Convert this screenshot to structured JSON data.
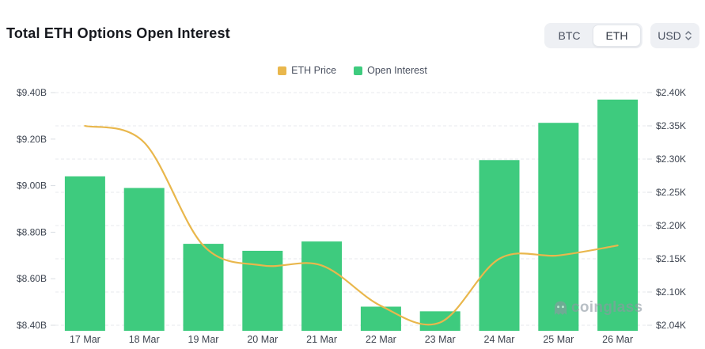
{
  "header": {
    "title": "Total ETH Options Open Interest",
    "coin_toggle": {
      "options": [
        "BTC",
        "ETH"
      ],
      "selected": "ETH"
    },
    "currency_selector": {
      "value": "USD"
    }
  },
  "legend": [
    {
      "label": "ETH Price",
      "color": "#e9b74c"
    },
    {
      "label": "Open Interest",
      "color": "#3ecb7e"
    }
  ],
  "watermark": {
    "text": "coinglass"
  },
  "chart_data": {
    "type": "bar+line combo",
    "title": "Total ETH Options Open Interest",
    "categories": [
      "17 Mar",
      "18 Mar",
      "19 Mar",
      "20 Mar",
      "21 Mar",
      "22 Mar",
      "23 Mar",
      "24 Mar",
      "25 Mar",
      "26 Mar"
    ],
    "series": [
      {
        "name": "Open Interest",
        "type": "bar",
        "axis": "left",
        "unit": "billion USD",
        "color": "#3ecb7e",
        "values": [
          9.04,
          8.99,
          8.75,
          8.72,
          8.76,
          8.48,
          8.46,
          9.11,
          9.27,
          9.37
        ]
      },
      {
        "name": "ETH Price",
        "type": "line",
        "axis": "right",
        "unit": "thousand USD",
        "color": "#e9b74c",
        "values": [
          2.35,
          2.325,
          2.17,
          2.14,
          2.14,
          2.075,
          2.045,
          2.15,
          2.155,
          2.17
        ]
      }
    ],
    "left_axis": {
      "tick_labels": [
        "$9.40B",
        "$9.20B",
        "$9.00B",
        "$8.80B",
        "$8.60B",
        "$8.40B"
      ],
      "tick_values": [
        9.4,
        9.2,
        9.0,
        8.8,
        8.6,
        8.4
      ],
      "min": 8.4,
      "max": 9.4
    },
    "right_axis": {
      "tick_labels": [
        "$2.40K",
        "$2.35K",
        "$2.30K",
        "$2.25K",
        "$2.20K",
        "$2.15K",
        "$2.10K",
        "$2.04K"
      ],
      "tick_values": [
        2.4,
        2.35,
        2.3,
        2.25,
        2.2,
        2.15,
        2.1,
        2.04
      ]
    },
    "grid": true,
    "grid_style": "dashed horizontal",
    "legend_position": "top-center"
  }
}
